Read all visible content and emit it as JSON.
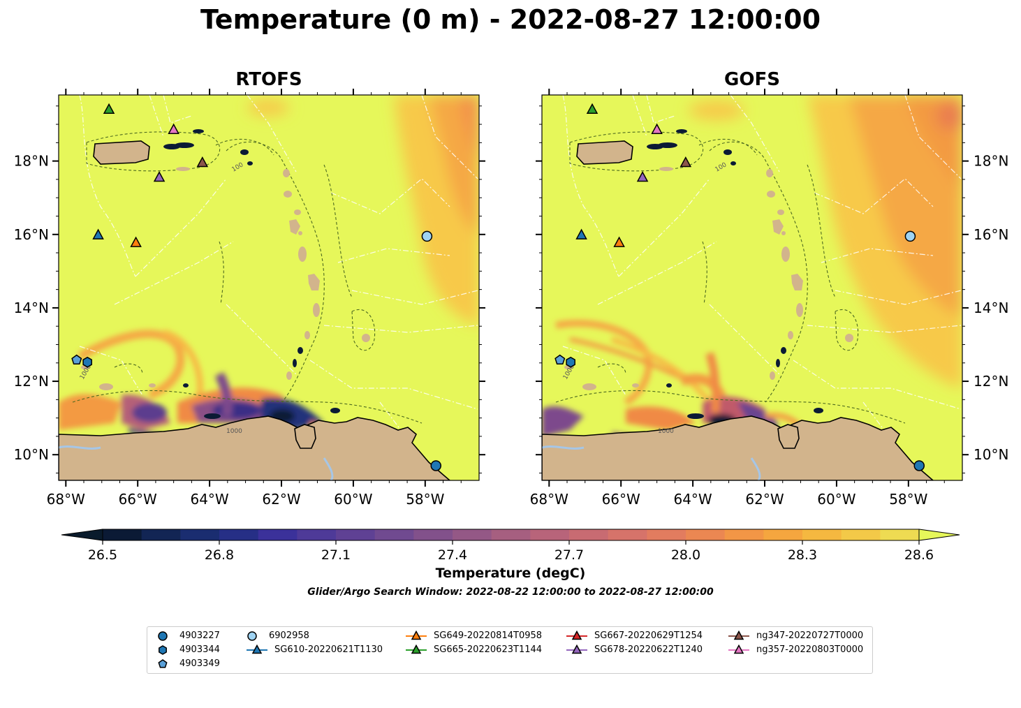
{
  "title": "Temperature (0 m) - 2022-08-27 12:00:00",
  "panels": [
    {
      "title": "RTOFS"
    },
    {
      "title": "GOFS"
    }
  ],
  "axes": {
    "lon_ticks": [
      "68°W",
      "66°W",
      "64°W",
      "62°W",
      "60°W",
      "58°W"
    ],
    "lat_ticks": [
      "18°N",
      "16°N",
      "14°N",
      "12°N",
      "10°N"
    ],
    "lon_range": [
      -68.2,
      -56.5
    ],
    "lat_range": [
      9.3,
      19.8
    ]
  },
  "colorbar": {
    "label": "Temperature (degC)",
    "ticks": [
      "26.5",
      "26.8",
      "27.1",
      "27.4",
      "27.7",
      "28.0",
      "28.3",
      "28.6"
    ],
    "min": 26.5,
    "max": 28.6,
    "extend": "both"
  },
  "search_window": "Glider/Argo Search Window: 2022-08-22 12:00:00 to 2022-08-27 12:00:00",
  "contour_labels": [
    "100",
    "1000"
  ],
  "colors": {
    "ocean_warm": "#e6f75a",
    "ocean_mid": "#f7b945",
    "ocean_hot": "#f39a42",
    "land": "#d2b48c",
    "lake": "#a6c6e6"
  },
  "legend": [
    {
      "label": "4903227",
      "marker": "circle",
      "color": "#1f77b4"
    },
    {
      "label": "4903344",
      "marker": "hexagon",
      "color": "#1f77b4"
    },
    {
      "label": "4903349",
      "marker": "pentagon",
      "color": "#5aa0d8"
    },
    {
      "label": "6902958",
      "marker": "circle",
      "color": "#9fd3f2"
    },
    {
      "label": "SG610-20220621T1130",
      "marker": "triangle",
      "color": "#1f77b4"
    },
    {
      "label": "SG649-20220814T0958",
      "marker": "triangle",
      "color": "#ff7f0e"
    },
    {
      "label": "SG665-20220623T1144",
      "marker": "triangle",
      "color": "#2ca02c"
    },
    {
      "label": "SG667-20220629T1254",
      "marker": "triangle",
      "color": "#d62728"
    },
    {
      "label": "SG678-20220622T1240",
      "marker": "triangle",
      "color": "#9467bd"
    },
    {
      "label": "ng347-20220727T0000",
      "marker": "triangle",
      "color": "#8c564b"
    },
    {
      "label": "ng357-20220803T0000",
      "marker": "triangle",
      "color": "#e377c2"
    }
  ],
  "observations": [
    {
      "label": "SG665-20220623T1144",
      "lon": -66.8,
      "lat": 19.4,
      "marker": "triangle",
      "color": "#2ca02c"
    },
    {
      "label": "ng357-20220803T0000",
      "lon": -65.0,
      "lat": 18.85,
      "marker": "triangle",
      "color": "#e377c2"
    },
    {
      "label": "ng347-20220727T0000",
      "lon": -64.2,
      "lat": 17.95,
      "marker": "triangle",
      "color": "#8c564b"
    },
    {
      "label": "SG678-20220622T1240",
      "lon": -65.4,
      "lat": 17.55,
      "marker": "triangle",
      "color": "#9467bd"
    },
    {
      "label": "SG610-20220621T1130",
      "lon": -67.1,
      "lat": 15.98,
      "marker": "triangle",
      "color": "#1f77b4"
    },
    {
      "label": "SG649-20220814T0958",
      "lon": -66.05,
      "lat": 15.77,
      "marker": "triangle",
      "color": "#ff7f0e"
    },
    {
      "label": "6902958",
      "lon": -57.95,
      "lat": 15.95,
      "marker": "circle",
      "color": "#9fd3f2"
    },
    {
      "label": "4903227",
      "lon": -57.7,
      "lat": 9.7,
      "marker": "circle",
      "color": "#1f77b4"
    },
    {
      "label": "4903349",
      "lon": -67.7,
      "lat": 12.58,
      "marker": "pentagon",
      "color": "#5aa0d8"
    },
    {
      "label": "4903344",
      "lon": -67.4,
      "lat": 12.52,
      "marker": "hexagon",
      "color": "#1f77b4"
    }
  ]
}
